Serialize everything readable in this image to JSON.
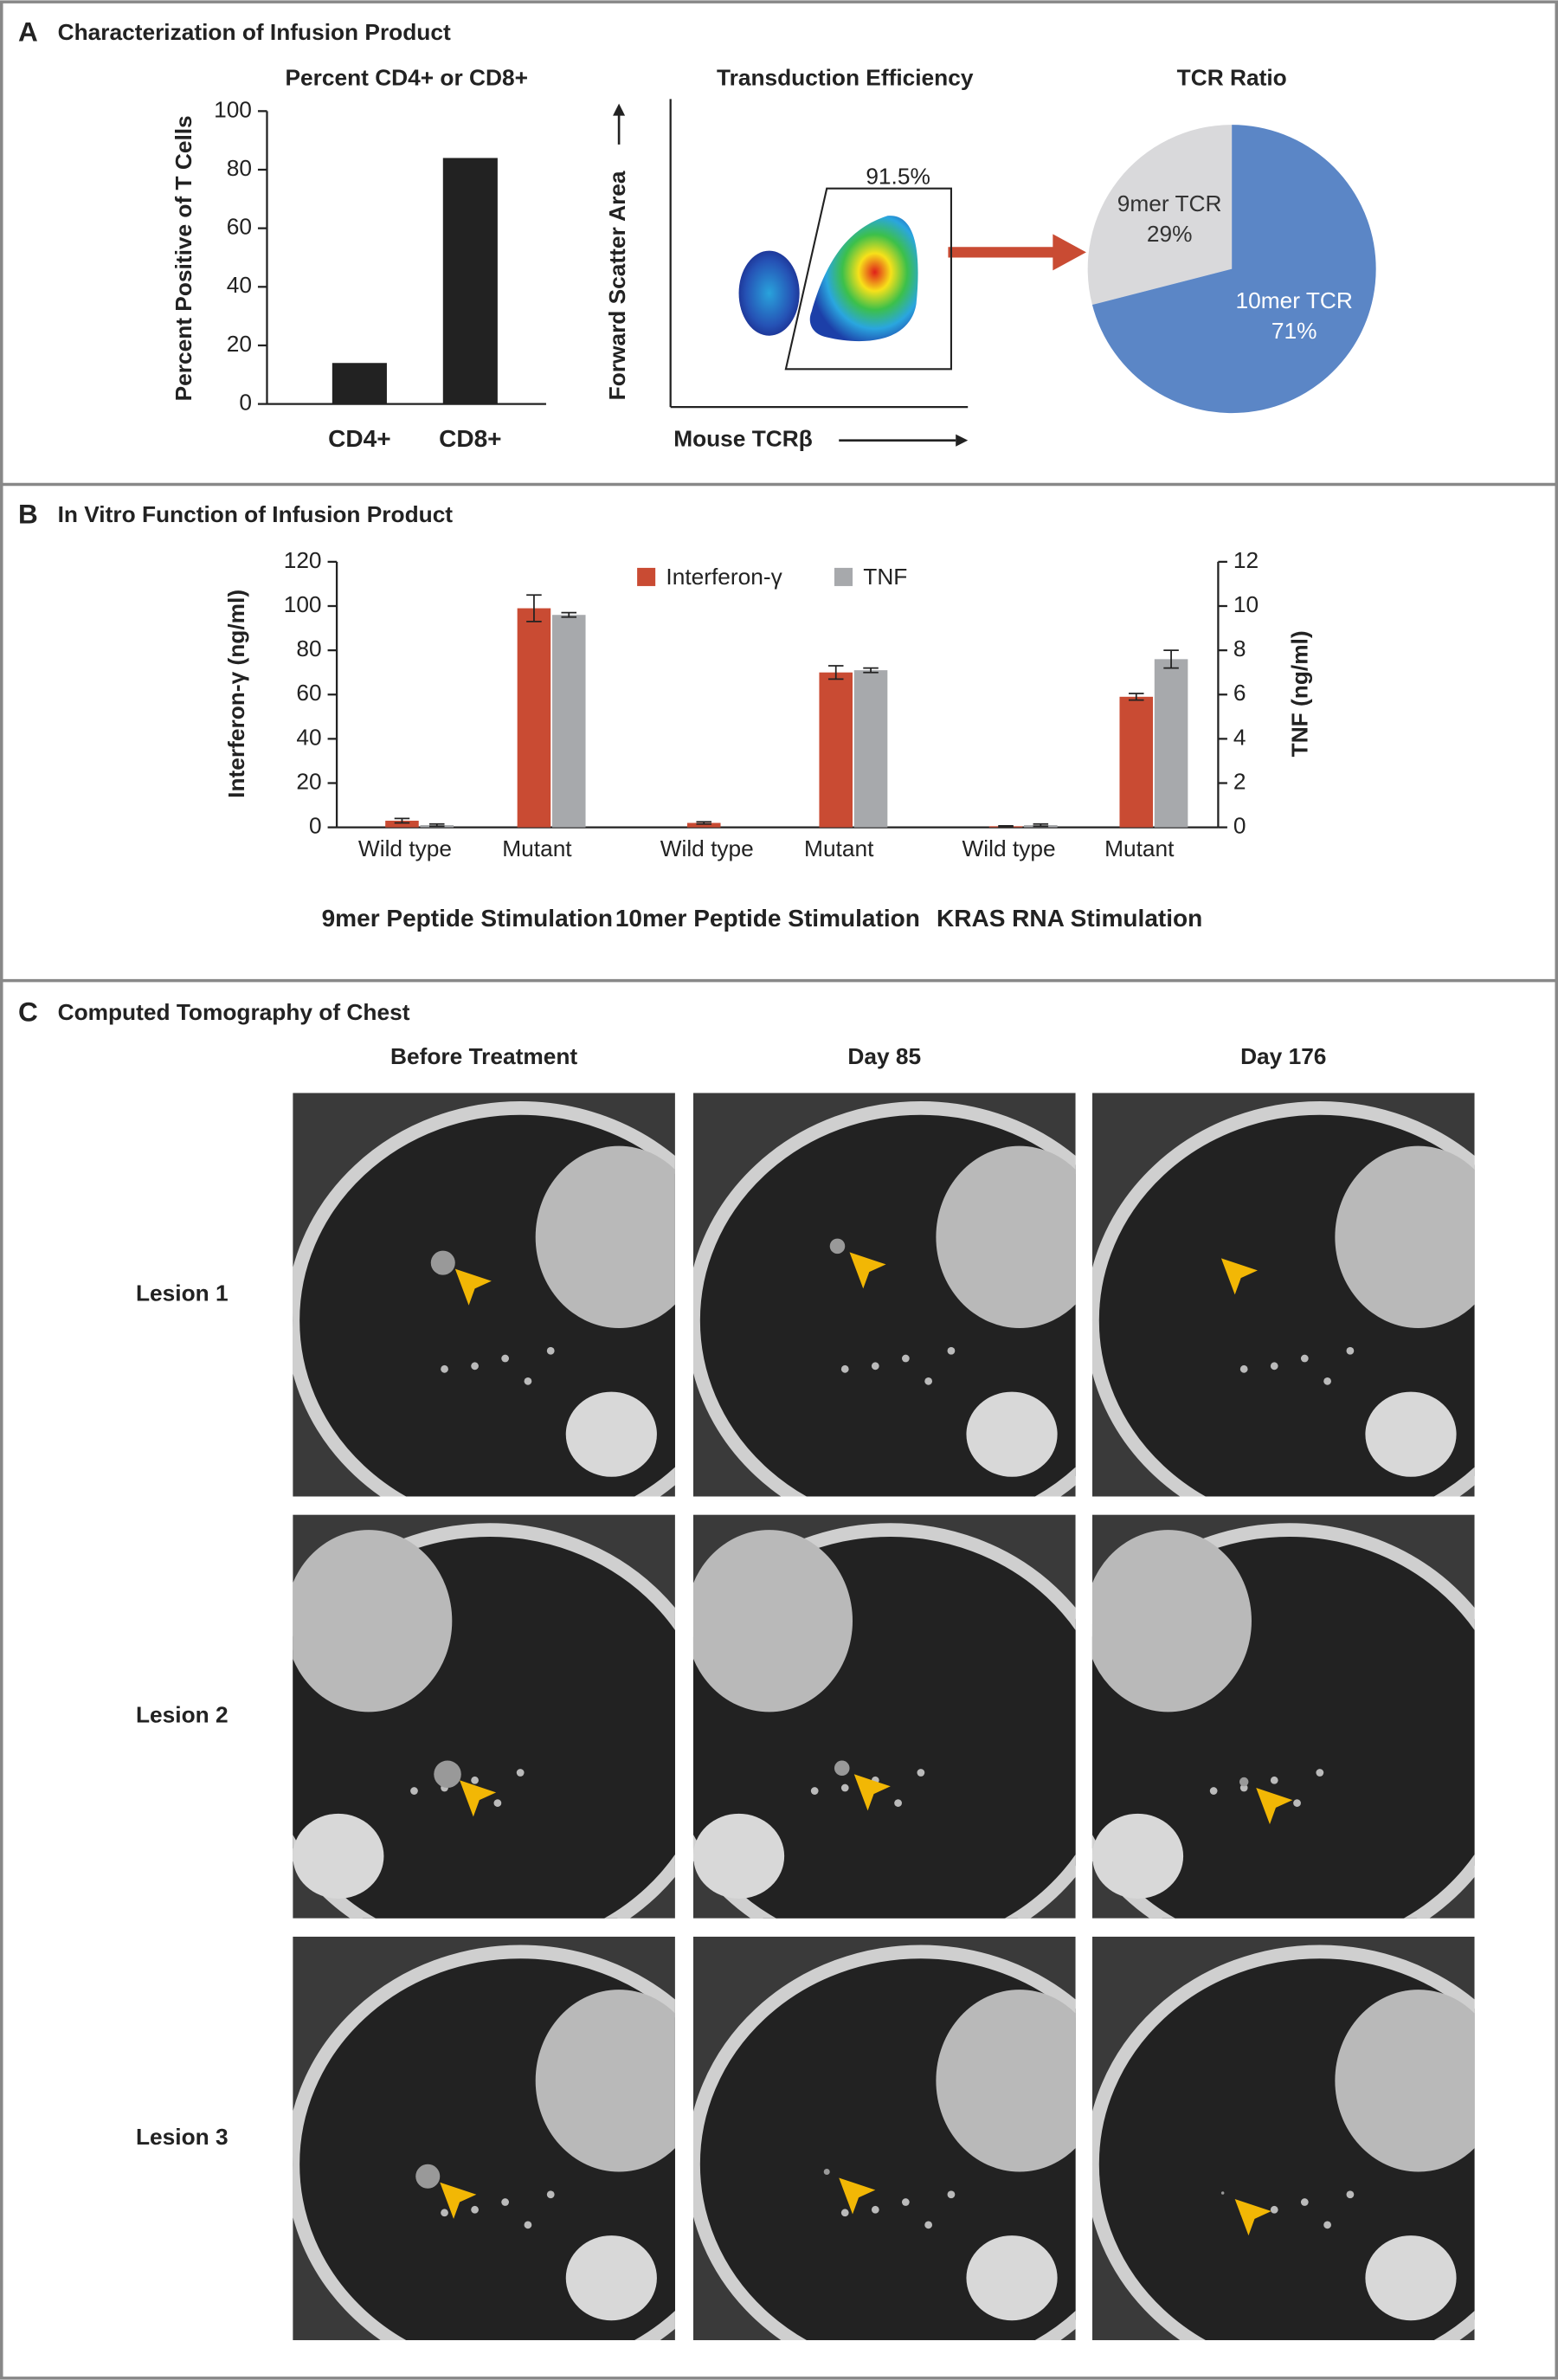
{
  "panels": [
    {
      "letter": "A",
      "title": "Characterization of Infusion Product"
    },
    {
      "letter": "B",
      "title": "In Vitro Function of Infusion Product"
    },
    {
      "letter": "C",
      "title": "Computed Tomography of Chest"
    }
  ],
  "chart_data": [
    {
      "type": "bar",
      "title": "Percent CD4+ or CD8+",
      "y_label": "Percent Positive of T Cells",
      "categories": [
        "CD4+",
        "CD8+"
      ],
      "values": [
        14,
        84
      ],
      "color": "#222222",
      "ylim": [
        0,
        100
      ],
      "yticks": [
        0,
        20,
        40,
        60,
        80,
        100
      ]
    },
    {
      "type": "flow",
      "title": "Transduction Efficiency",
      "x_label": "Mouse TCRβ",
      "y_label": "Forward Scatter Area",
      "annotation": "91.5%"
    },
    {
      "type": "pie",
      "title": "TCR Ratio",
      "categories": [
        "9mer TCR",
        "10mer TCR"
      ],
      "values": [
        29,
        71
      ],
      "value_labels": [
        "29%",
        "71%"
      ],
      "colors": [
        "#d9d9db",
        "#5b86c6"
      ]
    },
    {
      "type": "grouped_bar",
      "y_label": "Interferon-γ (ng/ml)",
      "y2_label": "TNF (ng/ml)",
      "categories": [
        "Wild type",
        "Mutant",
        "Wild type",
        "Mutant",
        "Wild type",
        "Mutant"
      ],
      "groups": [
        "9mer Peptide Stimulation",
        "10mer Peptide Stimulation",
        "KRAS RNA Stimulation"
      ],
      "series": [
        {
          "name": "Interferon-γ",
          "color": "#c94b33",
          "values": [
            3,
            99,
            2,
            70,
            0.5,
            59
          ],
          "errors": [
            1,
            6,
            0.5,
            3,
            0.2,
            1.5
          ]
        },
        {
          "name": "TNF",
          "color": "#a7a9ac",
          "axis": "y2",
          "values": [
            0.1,
            9.6,
            0,
            7.1,
            0.1,
            7.6
          ],
          "errors": [
            0.05,
            0.1,
            0,
            0.1,
            0.05,
            0.4
          ]
        }
      ],
      "ylim": [
        0,
        120
      ],
      "yticks": [
        0,
        20,
        40,
        60,
        80,
        100,
        120
      ],
      "y2lim": [
        0,
        12
      ],
      "y2ticks": [
        0,
        2,
        4,
        6,
        8,
        10,
        12
      ],
      "legend": "top-center"
    }
  ],
  "ct": {
    "columns": [
      "Before Treatment",
      "Day 85",
      "Day 176"
    ],
    "rows": [
      "Lesion 1",
      "Lesion 2",
      "Lesion 3"
    ]
  }
}
